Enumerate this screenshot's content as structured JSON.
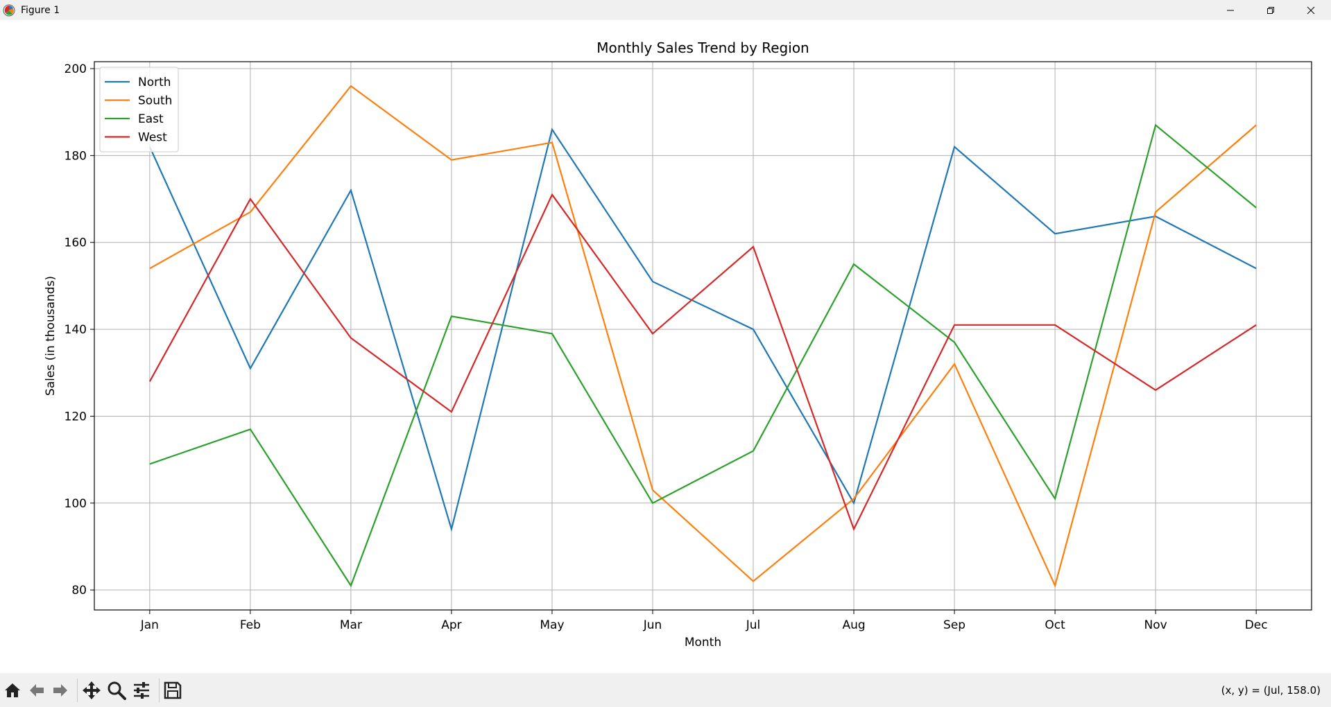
{
  "window": {
    "title": "Figure 1"
  },
  "toolbar": {
    "buttons": [
      {
        "name": "home-icon"
      },
      {
        "name": "back-icon"
      },
      {
        "name": "forward-icon"
      },
      {
        "name": "pan-icon"
      },
      {
        "name": "zoom-icon"
      },
      {
        "name": "configure-subplots-icon"
      },
      {
        "name": "save-icon"
      }
    ],
    "coords": "(x, y) = (Jul, 158.0)"
  },
  "chart_data": {
    "type": "line",
    "title": "Monthly Sales Trend by Region",
    "xlabel": "Month",
    "ylabel": "Sales (in thousands)",
    "categories": [
      "Jan",
      "Feb",
      "Mar",
      "Apr",
      "May",
      "Jun",
      "Jul",
      "Aug",
      "Sep",
      "Oct",
      "Nov",
      "Dec"
    ],
    "ylim": [
      75.4,
      201.6
    ],
    "yticks": [
      80,
      100,
      120,
      140,
      160,
      180,
      200
    ],
    "grid": true,
    "legend_position": "upper-left",
    "series": [
      {
        "name": "North",
        "color": "#1f77b4",
        "values": [
          182,
          131,
          172,
          94,
          186,
          151,
          140,
          100,
          182,
          162,
          166,
          154
        ]
      },
      {
        "name": "South",
        "color": "#ff7f0e",
        "values": [
          154,
          167,
          196,
          179,
          183,
          103,
          82,
          101,
          132,
          81,
          167,
          187
        ]
      },
      {
        "name": "East",
        "color": "#2ca02c",
        "values": [
          109,
          117,
          81,
          143,
          139,
          100,
          112,
          155,
          137,
          101,
          187,
          168
        ]
      },
      {
        "name": "West",
        "color": "#d62728",
        "values": [
          128,
          170,
          138,
          121,
          171,
          139,
          159,
          94,
          141,
          141,
          126,
          141
        ]
      }
    ]
  }
}
